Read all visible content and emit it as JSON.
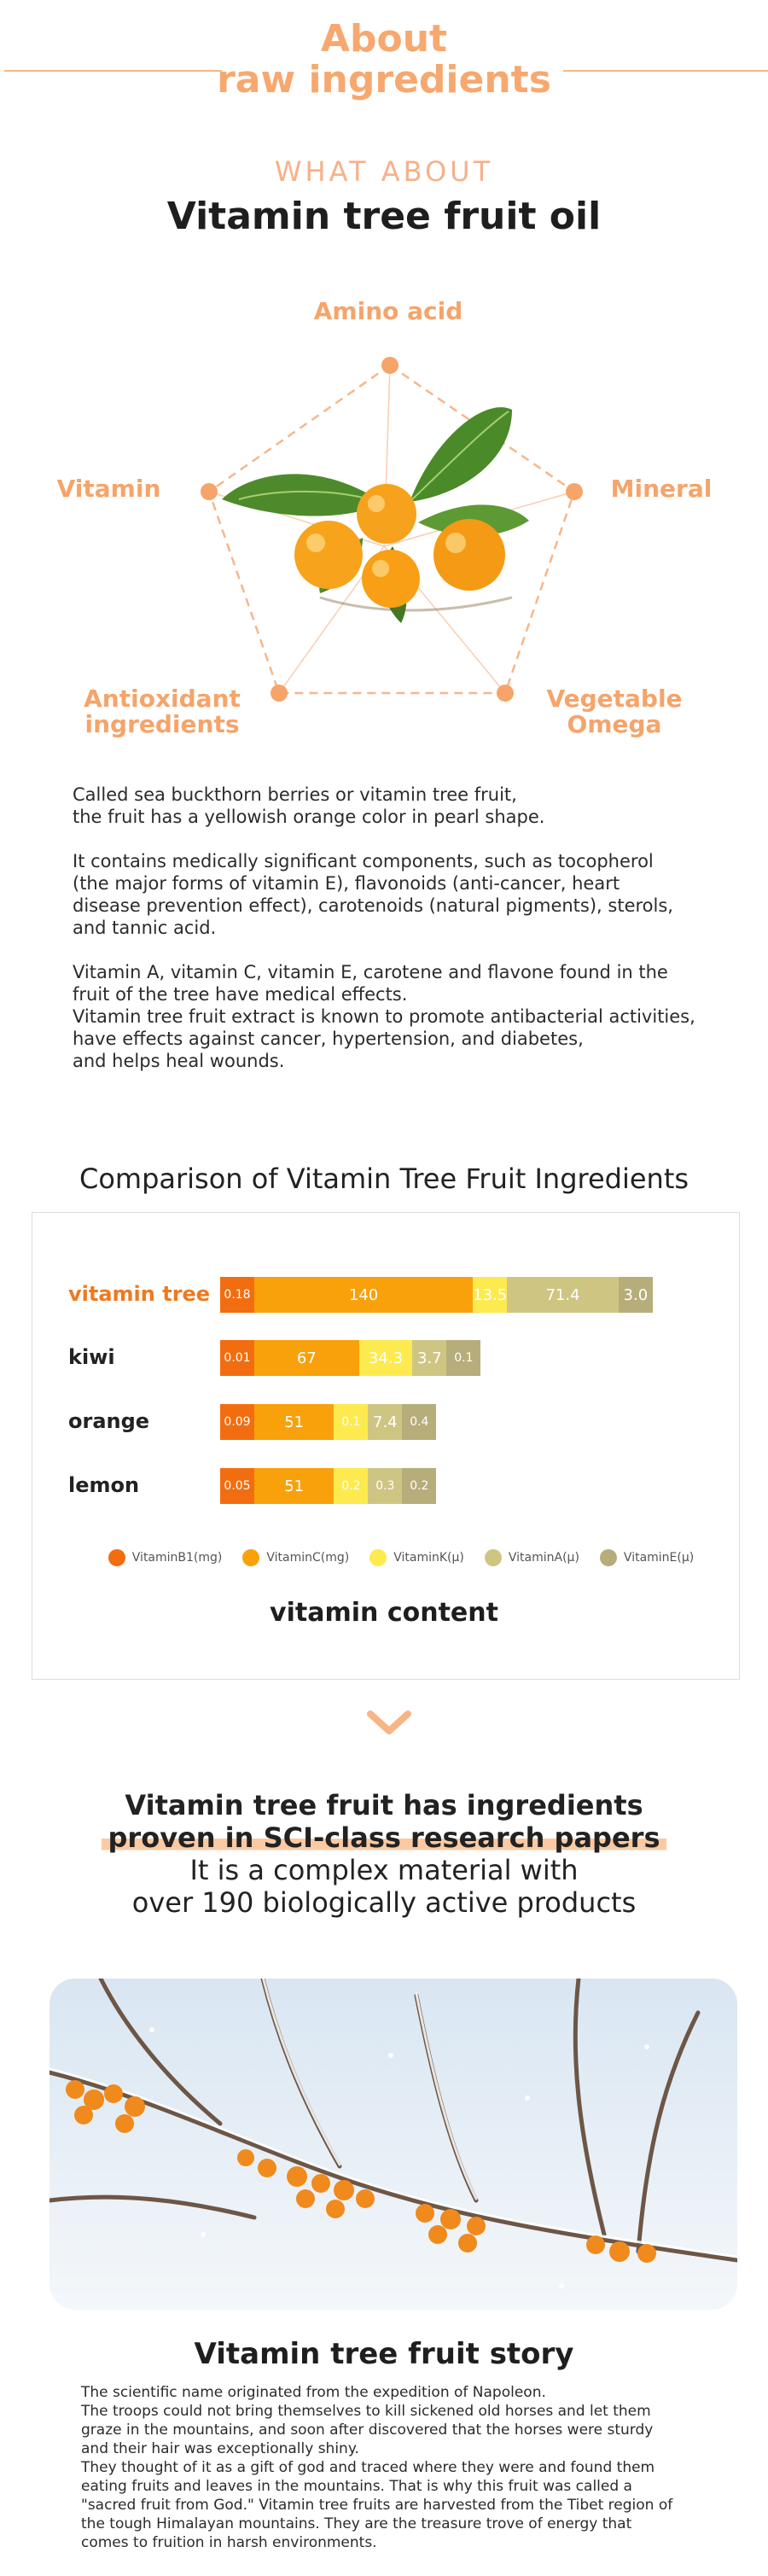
{
  "header": {
    "title_line1": "About",
    "title_line2": "raw ingredients"
  },
  "section1": {
    "kicker": "WHAT ABOUT",
    "title": "Vitamin tree fruit oil",
    "pentagon_labels": {
      "top": "Amino acid",
      "left": "Vitamin",
      "right": "Mineral",
      "bottom_left_1": "Antioxidant",
      "bottom_left_2": "ingredients",
      "bottom_right_1": "Vegetable",
      "bottom_right_2": "Omega"
    },
    "paragraphs": [
      [
        "Called sea buckthorn berries or vitamin tree fruit,",
        "the fruit has a yellowish orange color in pearl shape."
      ],
      [
        "It contains medically significant components, such as tocopherol",
        "(the major forms of vitamin E), flavonoids (anti-cancer, heart",
        "disease prevention effect), carotenoids (natural pigments), sterols,",
        "and tannic acid."
      ],
      [
        "Vitamin A, vitamin C, vitamin E, carotene and flavone found in the",
        "fruit of the tree have medical effects.",
        "Vitamin tree fruit extract is known to promote antibacterial activities,",
        "have effects against cancer, hypertension, and diabetes,",
        "and helps heal wounds."
      ]
    ]
  },
  "comparison": {
    "title": "Comparison of Vitamin Tree Fruit Ingredients",
    "xlabel": "vitamin content"
  },
  "chart_data": {
    "type": "bar",
    "stacked": true,
    "orientation": "horizontal",
    "title": "Comparison of Vitamin Tree Fruit Ingredients",
    "xlabel": "vitamin content",
    "categories": [
      "vitamin tree",
      "kiwi",
      "orange",
      "lemon"
    ],
    "highlight_category": "vitamin tree",
    "series": [
      {
        "name": "VitaminB1(mg)",
        "color": "#f26d0f",
        "values": [
          "0.18",
          "0.01",
          "0.09",
          "0.05"
        ]
      },
      {
        "name": "VitaminC(mg)",
        "color": "#f9a10b",
        "values": [
          "140",
          "67",
          "51",
          "51"
        ]
      },
      {
        "name": "VitaminK(μ)",
        "color": "#fdea4f",
        "values": [
          "13.5",
          "34.3",
          "0.1",
          "0.2"
        ]
      },
      {
        "name": "VitaminA(μ)",
        "color": "#cfc583",
        "values": [
          "71.4",
          "3.7",
          "7.4",
          "0.3"
        ]
      },
      {
        "name": "VitaminE(μ)",
        "color": "#b7ad7a",
        "values": [
          "3.0",
          "0.1",
          "0.4",
          "0.2"
        ]
      }
    ],
    "legend_position": "bottom"
  },
  "sci": {
    "line1": "Vitamin tree fruit has ingredients",
    "line2": "proven in SCI-class research papers",
    "line3": "It is a complex material with",
    "line4": "over 190 biologically active products"
  },
  "story": {
    "title": "Vitamin tree fruit story",
    "lines": [
      "The scientific name originated from the expedition of Napoleon.",
      "The troops could not bring themselves to kill sickened old horses and let them",
      "graze in the mountains, and soon after discovered that the horses were sturdy",
      "and their hair was exceptionally shiny.",
      "They thought of it as a gift of god and traced where they were and found them",
      "eating fruits and leaves in the mountains. That is why this fruit was called a",
      "\"sacred fruit from God.\" Vitamin tree fruits are harvested from the Tibet region of",
      "the tough Himalayan mountains. They are the treasure trove of energy that",
      "comes to fruition in harsh environments."
    ]
  },
  "colors": {
    "accent": "#f7a86f",
    "highlight": "#f0791e"
  }
}
